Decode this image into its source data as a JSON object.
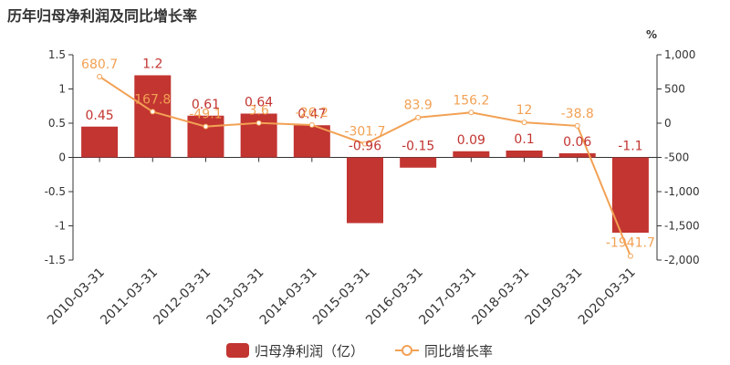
{
  "chart_data": {
    "type": "bar",
    "title": "历年归母净利润及同比增长率",
    "categories": [
      "2010-03-31",
      "2011-03-31",
      "2012-03-31",
      "2013-03-31",
      "2014-03-31",
      "2015-03-31",
      "2016-03-31",
      "2017-03-31",
      "2018-03-31",
      "2019-03-31",
      "2020-03-31"
    ],
    "series": [
      {
        "name": "归母净利润（亿）",
        "type": "bar",
        "axis": "left",
        "color": "#c23531",
        "values": [
          0.45,
          1.2,
          0.61,
          0.64,
          0.47,
          -0.96,
          -0.15,
          0.09,
          0.1,
          0.06,
          -1.1
        ],
        "labels": [
          "0.45",
          "1.2",
          "0.61",
          "0.64",
          "0.47",
          "-0.96",
          "-0.15",
          "0.09",
          "0.1",
          "0.06",
          "-1.1"
        ]
      },
      {
        "name": "同比增长率",
        "type": "line",
        "axis": "right",
        "color": "#f2a154",
        "values": [
          680.7,
          167.8,
          -49.1,
          3.6,
          -26.2,
          -301.7,
          83.9,
          156.2,
          12,
          -38.8,
          -1941.7
        ],
        "labels": [
          "680.7",
          "167.8",
          "-49.1",
          "3.6",
          "-26.2",
          "-301.7",
          "83.9",
          "156.2",
          "12",
          "-38.8",
          "-1941.7"
        ]
      }
    ],
    "y_left": {
      "ylim": [
        -1.5,
        1.5
      ],
      "ticks": [
        1.5,
        1,
        0.5,
        0,
        -0.5,
        -1,
        -1.5
      ],
      "tick_labels": [
        "1.5",
        "1",
        "0.5",
        "0",
        "-0.5",
        "-1",
        "-1.5"
      ]
    },
    "y_right": {
      "unit": "%",
      "ylim": [
        -2000,
        1000
      ],
      "ticks": [
        1000,
        500,
        0,
        -500,
        -1000,
        -1500,
        -2000
      ],
      "tick_labels": [
        "1,000",
        "500",
        "0",
        "-500",
        "-1,000",
        "-1,500",
        "-2,000"
      ]
    },
    "grid": false,
    "legend": "bottom-center"
  }
}
